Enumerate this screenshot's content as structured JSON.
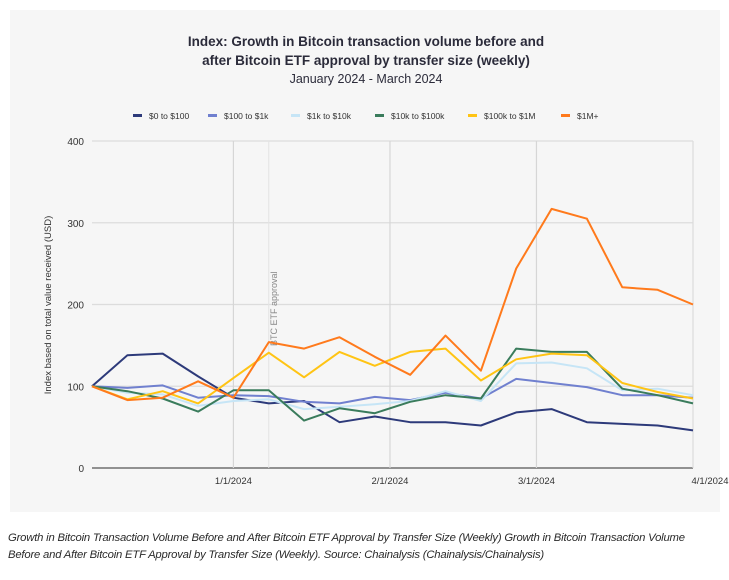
{
  "chart_data": {
    "type": "line",
    "title_line1": "Index: Growth in Bitcoin transaction volume before and",
    "title_line2": "after Bitcoin ETF approval by transfer size (weekly)",
    "subtitle": "January 2024 - March 2024",
    "ylabel": "Index based on total value received (USD)",
    "xlabel": "",
    "ylim": [
      0,
      400
    ],
    "yticks": [
      "0",
      "100",
      "200",
      "300",
      "400"
    ],
    "x": [
      "2023-12-04",
      "2023-12-11",
      "2023-12-18",
      "2023-12-25",
      "2024-01-01",
      "2024-01-08",
      "2024-01-15",
      "2024-01-22",
      "2024-01-29",
      "2024-02-05",
      "2024-02-12",
      "2024-02-19",
      "2024-02-26",
      "2024-03-04",
      "2024-03-11",
      "2024-03-18",
      "2024-03-25",
      "2024-04-01"
    ],
    "xticks": [
      {
        "label": "1/1/2024",
        "day": 28
      },
      {
        "label": "2/1/2024",
        "day": 59
      },
      {
        "label": "3/1/2024",
        "day": 88
      },
      {
        "label": "4/1/2024",
        "day": 119
      }
    ],
    "annotation": {
      "text": "BTC ETF approval",
      "x_index": 5
    },
    "legend_position": "top",
    "grid": true,
    "series": [
      {
        "name": "$0 to $100",
        "color": "#2d3a7a",
        "values": [
          100,
          138,
          140,
          112,
          86,
          79,
          82,
          56,
          63,
          56,
          56,
          52,
          68,
          72,
          56,
          54,
          52,
          46
        ]
      },
      {
        "name": "$100 to $1k",
        "color": "#7080cf",
        "values": [
          100,
          98,
          101,
          86,
          89,
          88,
          81,
          79,
          87,
          83,
          92,
          85,
          109,
          104,
          99,
          89,
          89,
          86
        ]
      },
      {
        "name": "$1k to $10k",
        "color": "#c6e5f6",
        "values": [
          100,
          92,
          90,
          76,
          82,
          84,
          72,
          75,
          78,
          82,
          94,
          82,
          128,
          129,
          122,
          95,
          97,
          89
        ]
      },
      {
        "name": "$10k to $100k",
        "color": "#3a7c5c",
        "values": [
          100,
          94,
          85,
          69,
          95,
          95,
          58,
          73,
          67,
          81,
          89,
          85,
          146,
          142,
          142,
          97,
          89,
          79
        ]
      },
      {
        "name": "$100k to $1M",
        "color": "#ffc414",
        "values": [
          100,
          84,
          94,
          79,
          110,
          141,
          111,
          142,
          125,
          142,
          146,
          107,
          133,
          140,
          138,
          104,
          93,
          85
        ]
      },
      {
        "name": "$1M+",
        "color": "#ff7a1c",
        "values": [
          100,
          83,
          86,
          106,
          86,
          154,
          146,
          160,
          136,
          114,
          162,
          119,
          244,
          317,
          305,
          221,
          218,
          200
        ]
      }
    ]
  },
  "caption": "Growth in Bitcoin Transaction Volume Before and After Bitcoin ETF Approval by Transfer Size (Weekly) Growth in Bitcoin Transaction Volume Before and After Bitcoin ETF Approval by Transfer Size (Weekly). Source: Chainalysis (Chainalysis/Chainalysis)"
}
